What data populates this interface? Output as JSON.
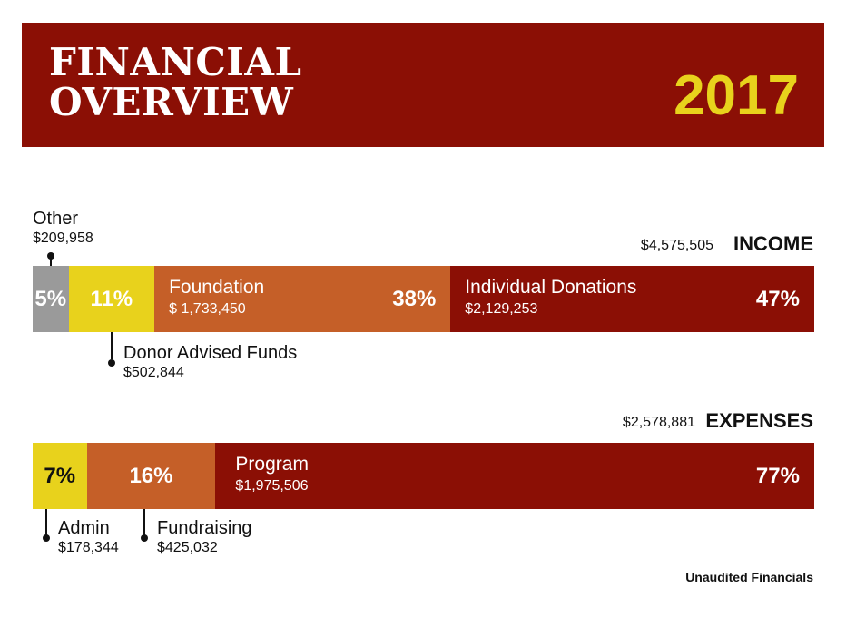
{
  "header": {
    "title_line1": "FINANCIAL",
    "title_line2": "OVERVIEW",
    "year": "2017"
  },
  "chart_data": [
    {
      "type": "bar",
      "title": "INCOME",
      "total": "$4,575,505",
      "categories": [
        "Other",
        "Donor Advised Funds",
        "Foundation",
        "Individual Donations"
      ],
      "values": [
        209958,
        502844,
        1733450,
        2129253
      ],
      "amount_labels": [
        "$209,958",
        "$502,844",
        "$ 1,733,450",
        "$2,129,253"
      ],
      "percent_labels": [
        "5%",
        "11%",
        "38%",
        "47%"
      ],
      "colors": [
        "#9a9a9a",
        "#e8d21c",
        "#c55f28",
        "#8b0f05"
      ]
    },
    {
      "type": "bar",
      "title": "EXPENSES",
      "total": "$2,578,881",
      "categories": [
        "Admin",
        "Fundraising",
        "Program"
      ],
      "values": [
        178344,
        425032,
        1975506
      ],
      "amount_labels": [
        "$178,344",
        "$425,032",
        "$1,975,506"
      ],
      "percent_labels": [
        "7%",
        "16%",
        "77%"
      ],
      "colors": [
        "#e8d21c",
        "#c55f28",
        "#8b0f05"
      ]
    }
  ],
  "footnote": "Unaudited Financials"
}
